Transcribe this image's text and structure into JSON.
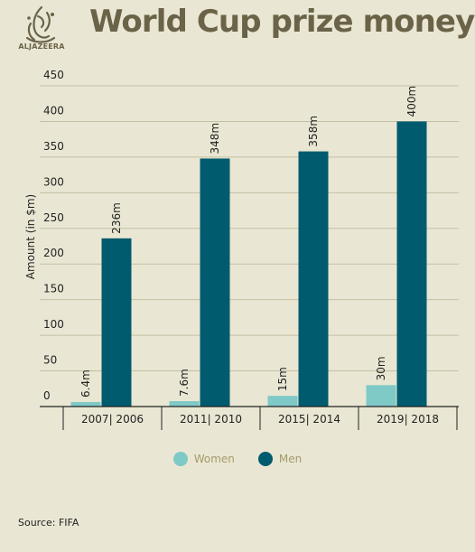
{
  "brand": {
    "name": "ALJAZEERA",
    "logo_icon": "aljazeera-logo-icon"
  },
  "colors": {
    "background": "#e9e7d3",
    "women": "#7fc9c7",
    "men": "#005b6e",
    "title": "#6b6348",
    "grid": "#c4c0a4"
  },
  "source": "Source: FIFA",
  "chart_data": {
    "type": "bar",
    "title": "World Cup prize money",
    "ylabel": "Amount (in $m)",
    "xlabel": "",
    "ylim": [
      0,
      450
    ],
    "yticks": [
      0,
      50,
      100,
      150,
      200,
      250,
      300,
      350,
      400,
      450
    ],
    "grid": true,
    "legend_position": "bottom",
    "categories": [
      "2007| 2006",
      "2011| 2010",
      "2015| 2014",
      "2019| 2018"
    ],
    "series": [
      {
        "name": "Women",
        "values": [
          6.4,
          7.6,
          15,
          30
        ],
        "labels": [
          "6.4m",
          "7.6m",
          "15m",
          "30m"
        ],
        "color": "#7fc9c7"
      },
      {
        "name": "Men",
        "values": [
          236,
          348,
          358,
          400
        ],
        "labels": [
          "236m",
          "348m",
          "358m",
          "400m"
        ],
        "color": "#005b6e"
      }
    ]
  }
}
